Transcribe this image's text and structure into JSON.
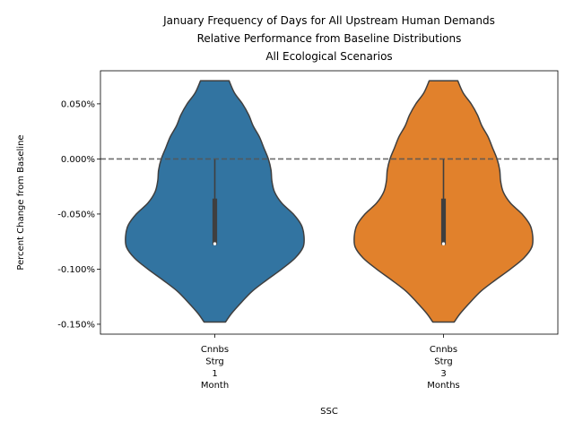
{
  "chart_data": {
    "type": "violin",
    "title_lines": [
      "January Frequency of Days for All Upstream Human Demands",
      "Relative Performance from Baseline Distributions",
      "All Ecological Scenarios"
    ],
    "xlabel": "SSC",
    "ylabel": "Percent Change from Baseline",
    "ylim": [
      -0.159,
      0.08
    ],
    "yticks": [
      0.05,
      0.0,
      -0.05,
      -0.1,
      -0.15
    ],
    "ytick_labels": [
      "0.050%",
      "0.000%",
      "-0.050%",
      "-0.100%",
      "-0.150%"
    ],
    "baseline": 0.0,
    "categories": [
      {
        "lines": [
          "Cnnbs",
          "Strg",
          "1",
          "Month"
        ]
      },
      {
        "lines": [
          "Cnnbs",
          "Strg",
          "3",
          "Months"
        ]
      }
    ],
    "series": [
      {
        "color": "#3274a1",
        "min": -0.148,
        "max": 0.071,
        "q1": -0.078,
        "median": -0.077,
        "q3": -0.036,
        "whisker_low": -0.078,
        "whisker_high": 0.0
      },
      {
        "color": "#e1812c",
        "min": -0.148,
        "max": 0.071,
        "q1": -0.078,
        "median": -0.077,
        "q3": -0.036,
        "whisker_low": -0.078,
        "whisker_high": 0.0
      }
    ],
    "density_profile": {
      "y": [
        0.071,
        0.06,
        0.05,
        0.04,
        0.03,
        0.02,
        0.01,
        0.0,
        -0.01,
        -0.02,
        -0.03,
        -0.04,
        -0.05,
        -0.06,
        -0.07,
        -0.08,
        -0.09,
        -0.1,
        -0.11,
        -0.12,
        -0.13,
        -0.14,
        -0.148
      ],
      "relative_width": [
        0.16,
        0.22,
        0.31,
        0.38,
        0.43,
        0.5,
        0.55,
        0.6,
        0.63,
        0.64,
        0.67,
        0.75,
        0.88,
        0.97,
        1.0,
        0.99,
        0.9,
        0.75,
        0.58,
        0.42,
        0.3,
        0.19,
        0.12
      ]
    },
    "grid": false,
    "legend": "none"
  }
}
